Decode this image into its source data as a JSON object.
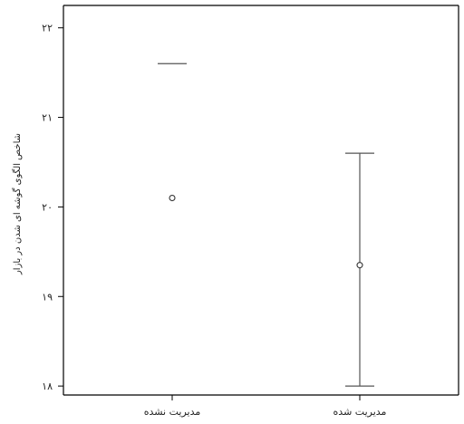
{
  "chart_data": {
    "type": "errorbar",
    "title": "",
    "ylabel": "شاخص الگوی گوشه ای شدن در بازار",
    "xlabel": "",
    "ylim": [
      17.9,
      22.25
    ],
    "yticks": [
      18.0,
      19.0,
      20.0,
      21.0,
      22.0
    ],
    "ytick_labels": [
      "۱۸",
      "۱۹",
      "۲۰",
      "۲۱",
      "۲۲"
    ],
    "grid": false,
    "categories": [
      "مدیریت نشده",
      "مدیریت شده"
    ],
    "points": [
      {
        "category": "مدیریت نشده",
        "mean": 20.1,
        "upper": 21.6,
        "lower": null
      },
      {
        "category": "مدیریت شده",
        "mean": 19.35,
        "upper": 20.6,
        "lower": 18.0
      }
    ]
  }
}
